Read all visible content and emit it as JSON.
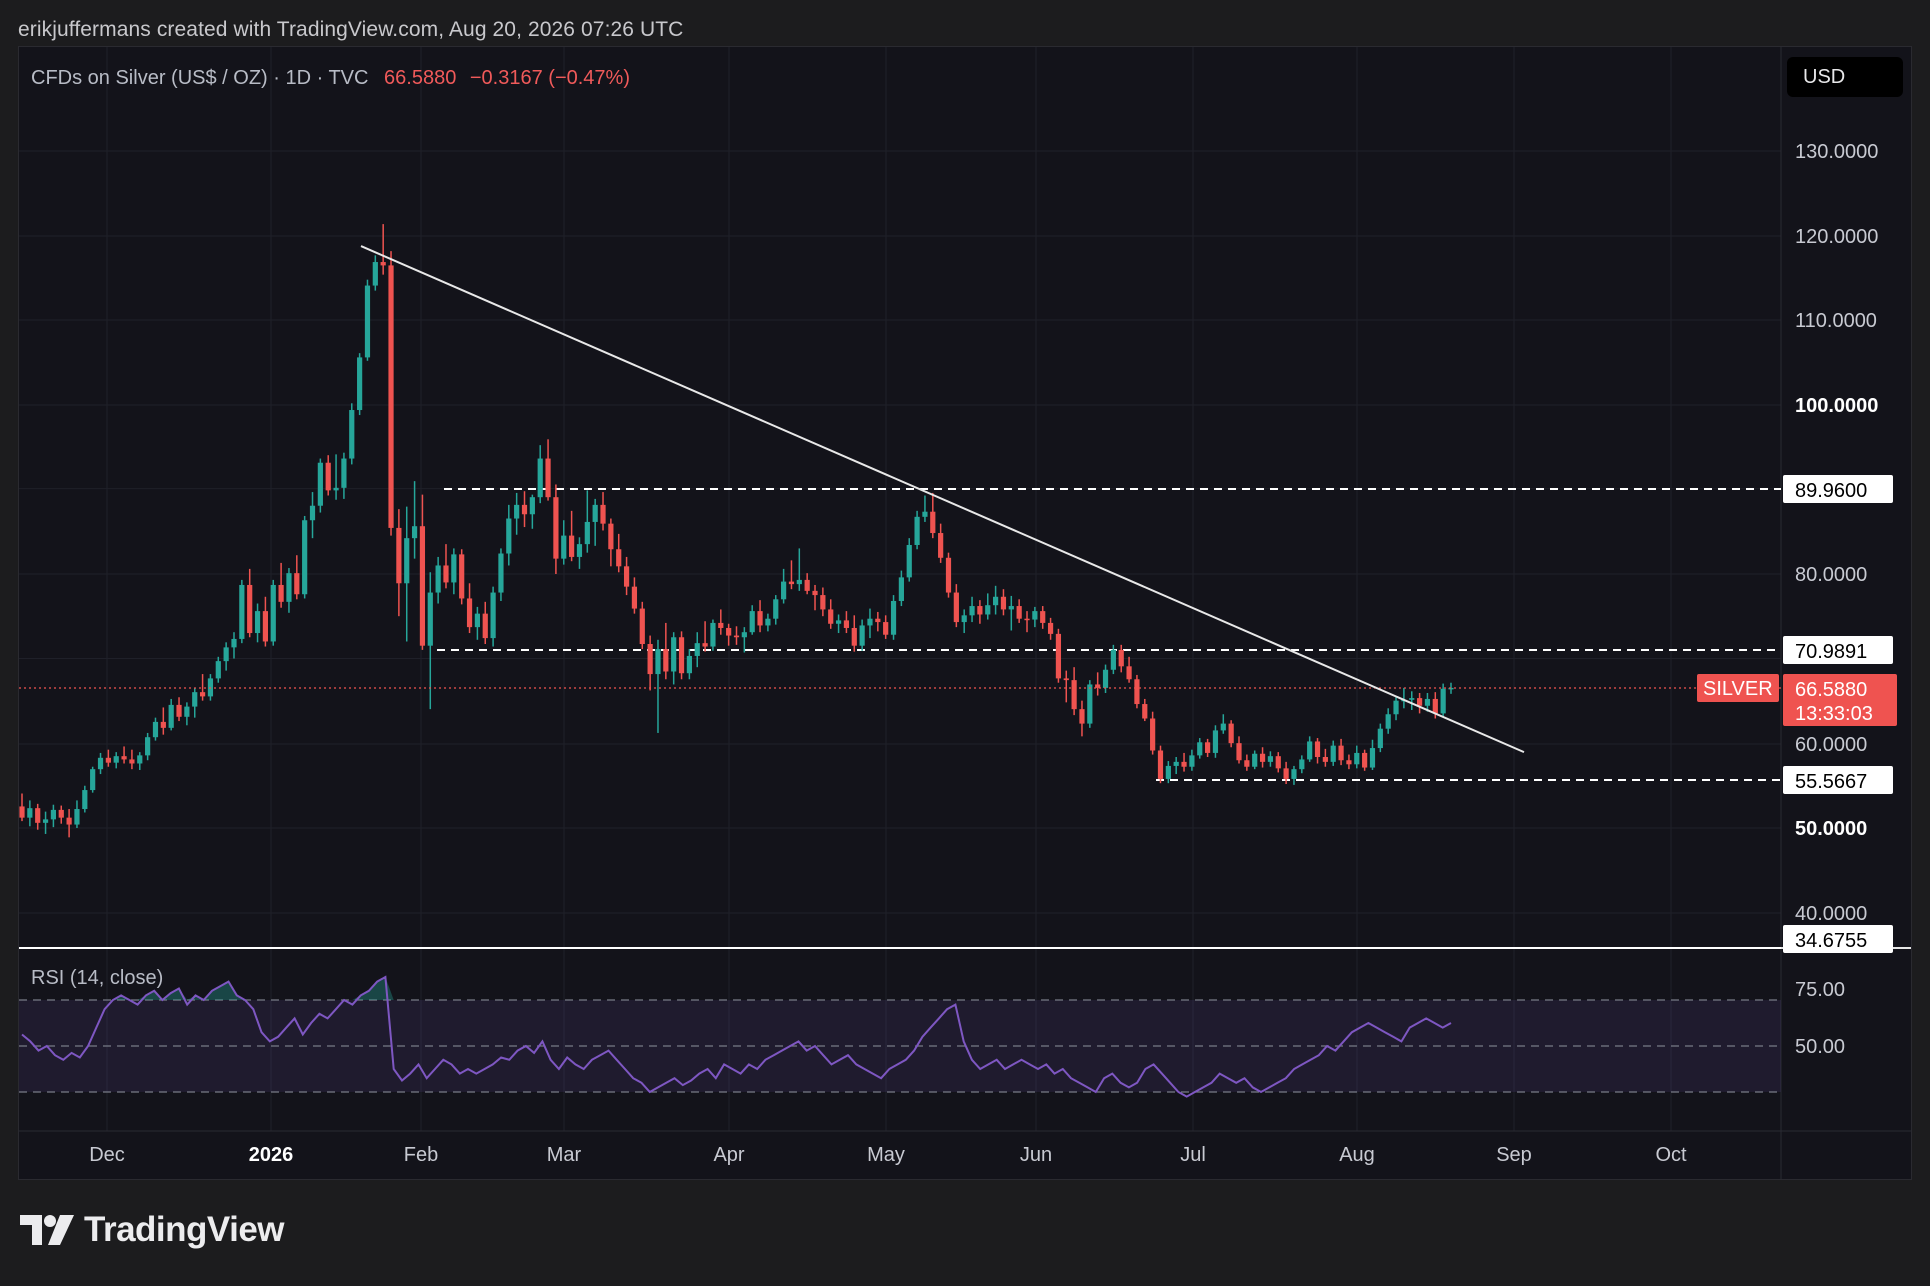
{
  "header": {
    "credit": "erikjuffermans created with TradingView.com, Aug 20, 2026 07:26 UTC"
  },
  "legend": {
    "symbol": "CFDs on Silver (US$ / OZ) · 1D · TVC",
    "last": "66.5880",
    "change": "−0.3167 (−0.47%)"
  },
  "currency_button": "USD",
  "rsi_legend": "RSI (14, close)",
  "brand": "TradingView",
  "colors": {
    "up": "#26a69a",
    "down": "#ef5350",
    "bg": "#13131a",
    "rsi": "#7e57c2"
  },
  "chart_data": {
    "type": "candlestick",
    "title": "CFDs on Silver (US$ / OZ) · 1D · TVC",
    "ylim": [
      33,
      138
    ],
    "y_ticks": [
      "130.0000",
      "120.0000",
      "110.0000",
      "100.0000",
      "80.0000",
      "60.0000",
      "50.0000",
      "40.0000"
    ],
    "x_ticks": [
      "Dec",
      "2026",
      "Feb",
      "Mar",
      "Apr",
      "May",
      "Jun",
      "Jul",
      "Aug",
      "Sep",
      "Oct"
    ],
    "price_levels": [
      {
        "label": "89.9600",
        "value": 89.96
      },
      {
        "label": "70.9891",
        "value": 70.9891
      },
      {
        "label": "55.5667",
        "value": 55.5667
      },
      {
        "label": "34.6755",
        "value": 34.6755
      }
    ],
    "last_price": {
      "symbol": "SILVER",
      "value": 66.588,
      "label": "66.5880",
      "countdown": "13:33:03"
    },
    "trendline": {
      "from": [
        "2026-01-21",
        118.8
      ],
      "to": [
        "2026-09-02",
        59.0
      ]
    },
    "rsi": {
      "name": "RSI (14, close)",
      "levels": [
        70,
        50,
        30
      ],
      "tick_labels": [
        "75.00",
        "50.00"
      ],
      "values": [
        55,
        52,
        48,
        50,
        46,
        44,
        47,
        45,
        50,
        58,
        66,
        70,
        72,
        70,
        68,
        72,
        74,
        70,
        73,
        75,
        68,
        72,
        70,
        74,
        76,
        78,
        72,
        70,
        66,
        56,
        52,
        54,
        58,
        62,
        55,
        60,
        64,
        62,
        66,
        70,
        68,
        72,
        74,
        78,
        80,
        40,
        35,
        38,
        42,
        36,
        40,
        44,
        42,
        38,
        40,
        38,
        40,
        42,
        45,
        44,
        48,
        50,
        47,
        52,
        44,
        40,
        45,
        42,
        40,
        44,
        46,
        48,
        44,
        40,
        36,
        34,
        30,
        32,
        34,
        36,
        33,
        35,
        38,
        40,
        36,
        42,
        40,
        38,
        42,
        40,
        44,
        46,
        48,
        50,
        52,
        48,
        50,
        46,
        42,
        44,
        46,
        42,
        40,
        38,
        36,
        40,
        42,
        44,
        48,
        54,
        58,
        62,
        66,
        68,
        52,
        44,
        40,
        42,
        44,
        40,
        42,
        44,
        42,
        40,
        42,
        38,
        40,
        36,
        34,
        32,
        30,
        36,
        38,
        34,
        32,
        34,
        40,
        42,
        38,
        34,
        30,
        28,
        30,
        32,
        34,
        38,
        36,
        34,
        36,
        32,
        30,
        32,
        34,
        36,
        40,
        42,
        44,
        46,
        50,
        48,
        52,
        56,
        58,
        60,
        58,
        56,
        54,
        52,
        58,
        60,
        62,
        60,
        58,
        60
      ]
    },
    "candles": [
      [
        52.5,
        54.0,
        50.8,
        51.2
      ],
      [
        51.2,
        53.2,
        50.2,
        52.3
      ],
      [
        52.3,
        52.8,
        49.8,
        50.6
      ],
      [
        50.6,
        51.9,
        49.3,
        51.0
      ],
      [
        51.0,
        52.7,
        50.1,
        52.1
      ],
      [
        52.1,
        52.6,
        50.5,
        51.2
      ],
      [
        51.2,
        52.2,
        48.9,
        50.4
      ],
      [
        50.4,
        53.2,
        50.0,
        52.2
      ],
      [
        52.2,
        54.9,
        51.8,
        54.4
      ],
      [
        54.4,
        57.2,
        54.1,
        56.9
      ],
      [
        56.9,
        58.9,
        56.3,
        58.3
      ],
      [
        58.3,
        59.3,
        57.2,
        57.7
      ],
      [
        57.7,
        59.0,
        57.0,
        58.5
      ],
      [
        58.5,
        59.7,
        57.6,
        58.1
      ],
      [
        58.1,
        59.3,
        56.9,
        57.6
      ],
      [
        57.6,
        59.0,
        56.8,
        58.6
      ],
      [
        58.6,
        61.3,
        58.0,
        60.8
      ],
      [
        60.8,
        63.1,
        60.4,
        62.6
      ],
      [
        62.6,
        64.3,
        61.1,
        61.9
      ],
      [
        61.9,
        65.3,
        61.6,
        64.6
      ],
      [
        64.6,
        65.5,
        62.7,
        63.2
      ],
      [
        63.2,
        64.9,
        62.2,
        64.4
      ],
      [
        64.4,
        66.6,
        63.1,
        66.1
      ],
      [
        66.1,
        68.2,
        65.1,
        65.6
      ],
      [
        65.6,
        68.2,
        65.1,
        67.7
      ],
      [
        67.7,
        70.2,
        67.2,
        69.7
      ],
      [
        69.7,
        71.9,
        68.6,
        71.3
      ],
      [
        71.3,
        73.1,
        70.0,
        72.3
      ],
      [
        72.3,
        79.3,
        71.8,
        78.7
      ],
      [
        78.7,
        80.6,
        72.5,
        73.0
      ],
      [
        73.0,
        76.5,
        71.9,
        75.6
      ],
      [
        75.6,
        77.3,
        71.4,
        72.0
      ],
      [
        72.0,
        79.3,
        71.5,
        78.7
      ],
      [
        78.7,
        81.3,
        76.0,
        76.7
      ],
      [
        76.7,
        80.7,
        75.4,
        80.1
      ],
      [
        80.1,
        82.2,
        77.0,
        77.6
      ],
      [
        77.6,
        86.8,
        77.1,
        86.3
      ],
      [
        86.3,
        89.6,
        84.2,
        88.0
      ],
      [
        88.0,
        93.6,
        87.2,
        93.1
      ],
      [
        93.1,
        94.0,
        89.2,
        89.8
      ],
      [
        89.8,
        94.1,
        88.7,
        90.1
      ],
      [
        90.1,
        94.3,
        88.8,
        93.6
      ],
      [
        93.6,
        100.2,
        92.9,
        99.4
      ],
      [
        99.4,
        106.1,
        98.8,
        105.6
      ],
      [
        105.6,
        114.8,
        105.2,
        114.1
      ],
      [
        114.1,
        117.7,
        113.5,
        116.9
      ],
      [
        116.9,
        121.4,
        115.4,
        116.5
      ],
      [
        116.5,
        118.2,
        84.5,
        85.4
      ],
      [
        85.4,
        87.6,
        75.0,
        78.9
      ],
      [
        78.9,
        87.9,
        72.0,
        84.2
      ],
      [
        84.2,
        90.9,
        81.8,
        85.6
      ],
      [
        85.6,
        89.3,
        71.0,
        71.5
      ],
      [
        71.5,
        80.2,
        64.1,
        77.8
      ],
      [
        77.8,
        82.0,
        76.5,
        81.0
      ],
      [
        81.0,
        83.5,
        78.3,
        79.0
      ],
      [
        79.0,
        83.0,
        77.6,
        82.3
      ],
      [
        82.3,
        82.9,
        76.4,
        77.1
      ],
      [
        77.1,
        78.9,
        73.0,
        73.7
      ],
      [
        73.7,
        76.1,
        72.2,
        75.3
      ],
      [
        75.3,
        76.7,
        71.7,
        72.4
      ],
      [
        72.4,
        78.5,
        71.4,
        77.8
      ],
      [
        77.8,
        83.0,
        76.8,
        82.4
      ],
      [
        82.4,
        88.1,
        81.0,
        86.5
      ],
      [
        86.5,
        89.5,
        84.6,
        88.1
      ],
      [
        88.1,
        89.7,
        85.5,
        87.0
      ],
      [
        87.0,
        89.3,
        85.3,
        89.0
      ],
      [
        89.0,
        95.2,
        88.3,
        93.6
      ],
      [
        93.6,
        95.9,
        88.6,
        89.0
      ],
      [
        89.0,
        90.5,
        80.0,
        81.8
      ],
      [
        81.8,
        86.3,
        81.1,
        84.5
      ],
      [
        84.5,
        87.4,
        81.5,
        82.0
      ],
      [
        82.0,
        84.3,
        80.6,
        83.5
      ],
      [
        83.5,
        89.8,
        82.5,
        86.1
      ],
      [
        86.1,
        88.8,
        83.3,
        88.1
      ],
      [
        88.1,
        89.6,
        85.1,
        85.9
      ],
      [
        85.9,
        86.5,
        80.9,
        82.9
      ],
      [
        82.9,
        84.7,
        80.2,
        80.9
      ],
      [
        80.9,
        82.0,
        77.5,
        78.5
      ],
      [
        78.5,
        79.6,
        75.3,
        75.9
      ],
      [
        75.9,
        76.7,
        71.1,
        71.7
      ],
      [
        71.7,
        72.7,
        66.3,
        68.2
      ],
      [
        68.2,
        72.2,
        61.3,
        71.1
      ],
      [
        71.1,
        74.2,
        67.6,
        68.5
      ],
      [
        68.5,
        73.1,
        67.0,
        72.5
      ],
      [
        72.5,
        73.2,
        67.6,
        68.3
      ],
      [
        68.3,
        71.1,
        67.6,
        70.3
      ],
      [
        70.3,
        73.1,
        69.0,
        71.8
      ],
      [
        71.8,
        74.4,
        70.8,
        71.4
      ],
      [
        71.4,
        74.6,
        70.9,
        74.2
      ],
      [
        74.2,
        75.8,
        72.8,
        73.6
      ],
      [
        73.6,
        74.1,
        71.5,
        72.7
      ],
      [
        72.7,
        73.8,
        71.6,
        72.5
      ],
      [
        72.5,
        73.7,
        70.7,
        73.1
      ],
      [
        73.1,
        76.3,
        72.8,
        75.6
      ],
      [
        75.6,
        76.9,
        73.1,
        73.9
      ],
      [
        73.9,
        75.3,
        73.2,
        74.7
      ],
      [
        74.7,
        77.5,
        74.0,
        77.0
      ],
      [
        77.0,
        80.6,
        76.5,
        79.1
      ],
      [
        79.1,
        81.6,
        78.2,
        78.8
      ],
      [
        78.8,
        83.0,
        78.0,
        79.3
      ],
      [
        79.3,
        80.1,
        77.6,
        78.0
      ],
      [
        78.0,
        78.7,
        75.7,
        77.5
      ],
      [
        77.5,
        78.4,
        75.0,
        75.8
      ],
      [
        75.8,
        77.0,
        73.5,
        74.1
      ],
      [
        74.1,
        75.2,
        73.0,
        74.5
      ],
      [
        74.5,
        75.6,
        73.0,
        73.6
      ],
      [
        73.6,
        75.1,
        70.8,
        71.5
      ],
      [
        71.5,
        74.6,
        70.9,
        73.9
      ],
      [
        73.9,
        75.9,
        72.4,
        74.7
      ],
      [
        74.7,
        75.5,
        73.2,
        74.3
      ],
      [
        74.3,
        75.1,
        72.3,
        72.8
      ],
      [
        72.8,
        77.5,
        72.2,
        76.8
      ],
      [
        76.8,
        80.4,
        76.2,
        79.6
      ],
      [
        79.6,
        84.2,
        79.1,
        83.4
      ],
      [
        83.4,
        87.4,
        82.9,
        86.7
      ],
      [
        86.7,
        89.2,
        86.1,
        87.3
      ],
      [
        87.3,
        89.5,
        84.2,
        84.8
      ],
      [
        84.8,
        85.9,
        81.3,
        81.9
      ],
      [
        81.9,
        82.5,
        77.2,
        77.8
      ],
      [
        77.8,
        78.8,
        73.7,
        74.3
      ],
      [
        74.3,
        75.8,
        73.0,
        75.1
      ],
      [
        75.1,
        77.3,
        74.3,
        76.2
      ],
      [
        76.2,
        76.9,
        74.1,
        75.2
      ],
      [
        75.2,
        77.7,
        74.6,
        76.3
      ],
      [
        76.3,
        78.6,
        75.2,
        77.3
      ],
      [
        77.3,
        78.2,
        75.1,
        75.8
      ],
      [
        75.8,
        77.4,
        73.3,
        76.2
      ],
      [
        76.2,
        77.0,
        74.2,
        74.7
      ],
      [
        74.7,
        75.6,
        73.1,
        74.6
      ],
      [
        74.6,
        76.1,
        73.7,
        75.6
      ],
      [
        75.6,
        76.2,
        73.5,
        74.2
      ],
      [
        74.2,
        74.8,
        72.2,
        72.9
      ],
      [
        72.9,
        73.5,
        67.2,
        67.7
      ],
      [
        67.7,
        68.6,
        64.9,
        67.5
      ],
      [
        67.5,
        69.0,
        63.4,
        64.1
      ],
      [
        64.1,
        65.1,
        60.9,
        62.4
      ],
      [
        62.4,
        67.5,
        61.9,
        67.0
      ],
      [
        67.0,
        68.4,
        65.7,
        66.6
      ],
      [
        66.6,
        69.3,
        66.0,
        68.7
      ],
      [
        68.7,
        71.6,
        68.2,
        71.0
      ],
      [
        71.0,
        71.6,
        68.4,
        69.1
      ],
      [
        69.1,
        70.2,
        67.2,
        67.6
      ],
      [
        67.6,
        68.1,
        64.2,
        64.7
      ],
      [
        64.7,
        65.3,
        62.7,
        63.0
      ],
      [
        63.0,
        63.8,
        58.7,
        59.2
      ],
      [
        59.2,
        59.8,
        55.2,
        55.7
      ],
      [
        55.7,
        57.9,
        55.2,
        57.3
      ],
      [
        57.3,
        58.4,
        56.3,
        57.8
      ],
      [
        57.8,
        58.9,
        56.6,
        57.2
      ],
      [
        57.2,
        59.3,
        56.7,
        58.6
      ],
      [
        58.6,
        60.7,
        58.2,
        60.2
      ],
      [
        60.2,
        60.6,
        58.4,
        58.9
      ],
      [
        58.9,
        62.2,
        58.3,
        61.6
      ],
      [
        61.6,
        63.5,
        61.2,
        62.4
      ],
      [
        62.4,
        62.8,
        59.6,
        60.1
      ],
      [
        60.1,
        60.9,
        57.6,
        58.0
      ],
      [
        58.0,
        58.7,
        56.7,
        57.2
      ],
      [
        57.2,
        59.2,
        56.9,
        58.8
      ],
      [
        58.8,
        59.6,
        57.1,
        57.8
      ],
      [
        57.8,
        59.1,
        57.2,
        58.5
      ],
      [
        58.5,
        59.0,
        56.5,
        57.0
      ],
      [
        57.0,
        57.8,
        55.1,
        55.7
      ],
      [
        55.7,
        57.3,
        55.0,
        56.9
      ],
      [
        56.9,
        58.6,
        56.4,
        58.1
      ],
      [
        58.1,
        60.9,
        57.8,
        60.3
      ],
      [
        60.3,
        60.7,
        57.6,
        58.4
      ],
      [
        58.4,
        59.4,
        57.2,
        57.8
      ],
      [
        57.8,
        60.4,
        57.3,
        59.8
      ],
      [
        59.8,
        60.6,
        57.4,
        58.0
      ],
      [
        58.0,
        58.7,
        56.9,
        57.5
      ],
      [
        57.5,
        59.8,
        57.0,
        58.9
      ],
      [
        58.9,
        59.3,
        56.7,
        57.1
      ],
      [
        57.1,
        60.5,
        56.8,
        59.5
      ],
      [
        59.5,
        62.4,
        59.0,
        61.8
      ],
      [
        61.8,
        64.2,
        61.2,
        63.5
      ],
      [
        63.5,
        65.6,
        62.8,
        65.1
      ],
      [
        65.1,
        66.6,
        64.2,
        65.2
      ],
      [
        65.2,
        66.2,
        64.0,
        65.4
      ],
      [
        65.4,
        66.0,
        63.6,
        64.5
      ],
      [
        64.5,
        66.0,
        63.8,
        65.3
      ],
      [
        65.3,
        66.1,
        63.0,
        63.6
      ],
      [
        63.6,
        67.1,
        63.2,
        66.5
      ],
      [
        66.5,
        67.2,
        65.9,
        66.6
      ]
    ]
  }
}
